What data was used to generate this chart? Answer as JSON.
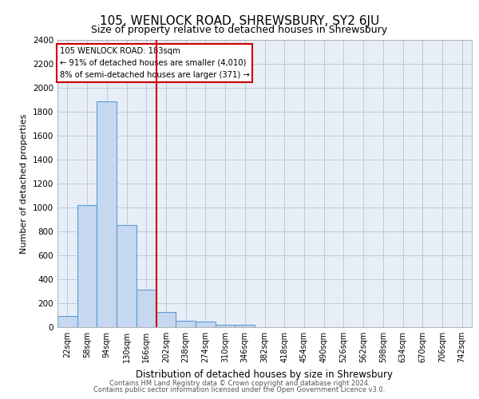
{
  "title": "105, WENLOCK ROAD, SHREWSBURY, SY2 6JU",
  "subtitle": "Size of property relative to detached houses in Shrewsbury",
  "xlabel": "Distribution of detached houses by size in Shrewsbury",
  "ylabel": "Number of detached properties",
  "footer_line1": "Contains HM Land Registry data © Crown copyright and database right 2024.",
  "footer_line2": "Contains public sector information licensed under the Open Government Licence v3.0.",
  "bin_labels": [
    "22sqm",
    "58sqm",
    "94sqm",
    "130sqm",
    "166sqm",
    "202sqm",
    "238sqm",
    "274sqm",
    "310sqm",
    "346sqm",
    "382sqm",
    "418sqm",
    "454sqm",
    "490sqm",
    "526sqm",
    "562sqm",
    "598sqm",
    "634sqm",
    "670sqm",
    "706sqm",
    "742sqm"
  ],
  "bar_heights": [
    95,
    1020,
    1890,
    855,
    315,
    125,
    52,
    48,
    20,
    18,
    0,
    0,
    0,
    0,
    0,
    0,
    0,
    0,
    0,
    0,
    0
  ],
  "bar_color": "#c5d8f0",
  "bar_edge_color": "#5b9bd5",
  "vline_x": 4.5,
  "vline_color": "#cc0000",
  "ylim": [
    0,
    2400
  ],
  "yticks": [
    0,
    200,
    400,
    600,
    800,
    1000,
    1200,
    1400,
    1600,
    1800,
    2000,
    2200,
    2400
  ],
  "annotation_title": "105 WENLOCK ROAD: 183sqm",
  "annotation_line1": "← 91% of detached houses are smaller (4,010)",
  "annotation_line2": "8% of semi-detached houses are larger (371) →",
  "grid_color": "#c0c8d8",
  "bg_color": "#e8eef8",
  "title_fontsize": 11,
  "subtitle_fontsize": 9
}
